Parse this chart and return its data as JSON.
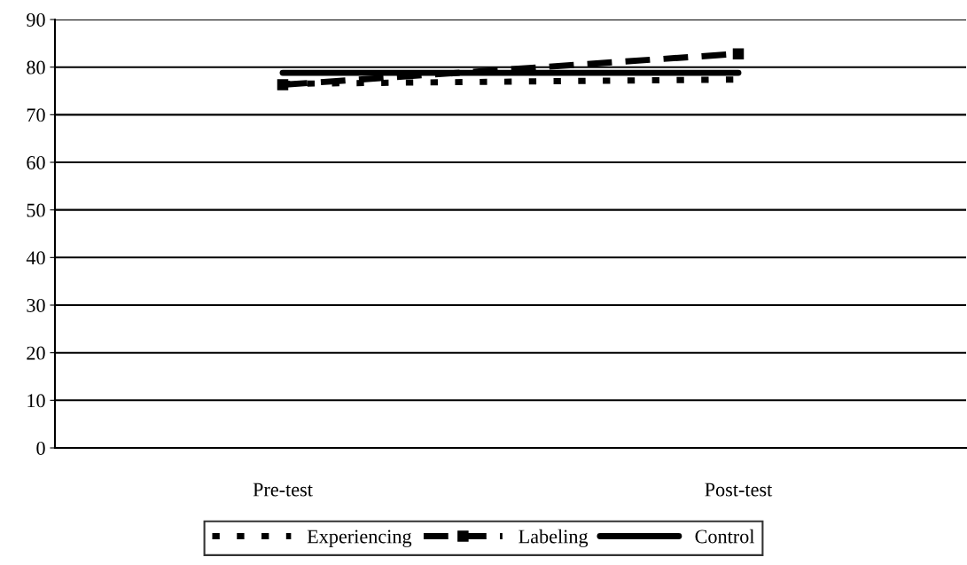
{
  "chart_data": {
    "type": "line",
    "categories": [
      "Pre-test",
      "Post-test"
    ],
    "series": [
      {
        "name": "Experiencing",
        "color": "#000000",
        "values": [
          76.5,
          77.4
        ],
        "line_style": "dotted",
        "marker": "none"
      },
      {
        "name": "Labeling",
        "color": "#000000",
        "values": [
          76.3,
          82.8
        ],
        "line_style": "dashed",
        "marker": "square"
      },
      {
        "name": "Control",
        "color": "#000000",
        "values": [
          78.8,
          78.8
        ],
        "line_style": "solid",
        "marker": "none"
      }
    ],
    "ylim": [
      0,
      90
    ],
    "yticks": [
      0,
      10,
      20,
      30,
      40,
      50,
      60,
      70,
      80,
      90
    ],
    "grid": "y",
    "legend": "bottom"
  }
}
